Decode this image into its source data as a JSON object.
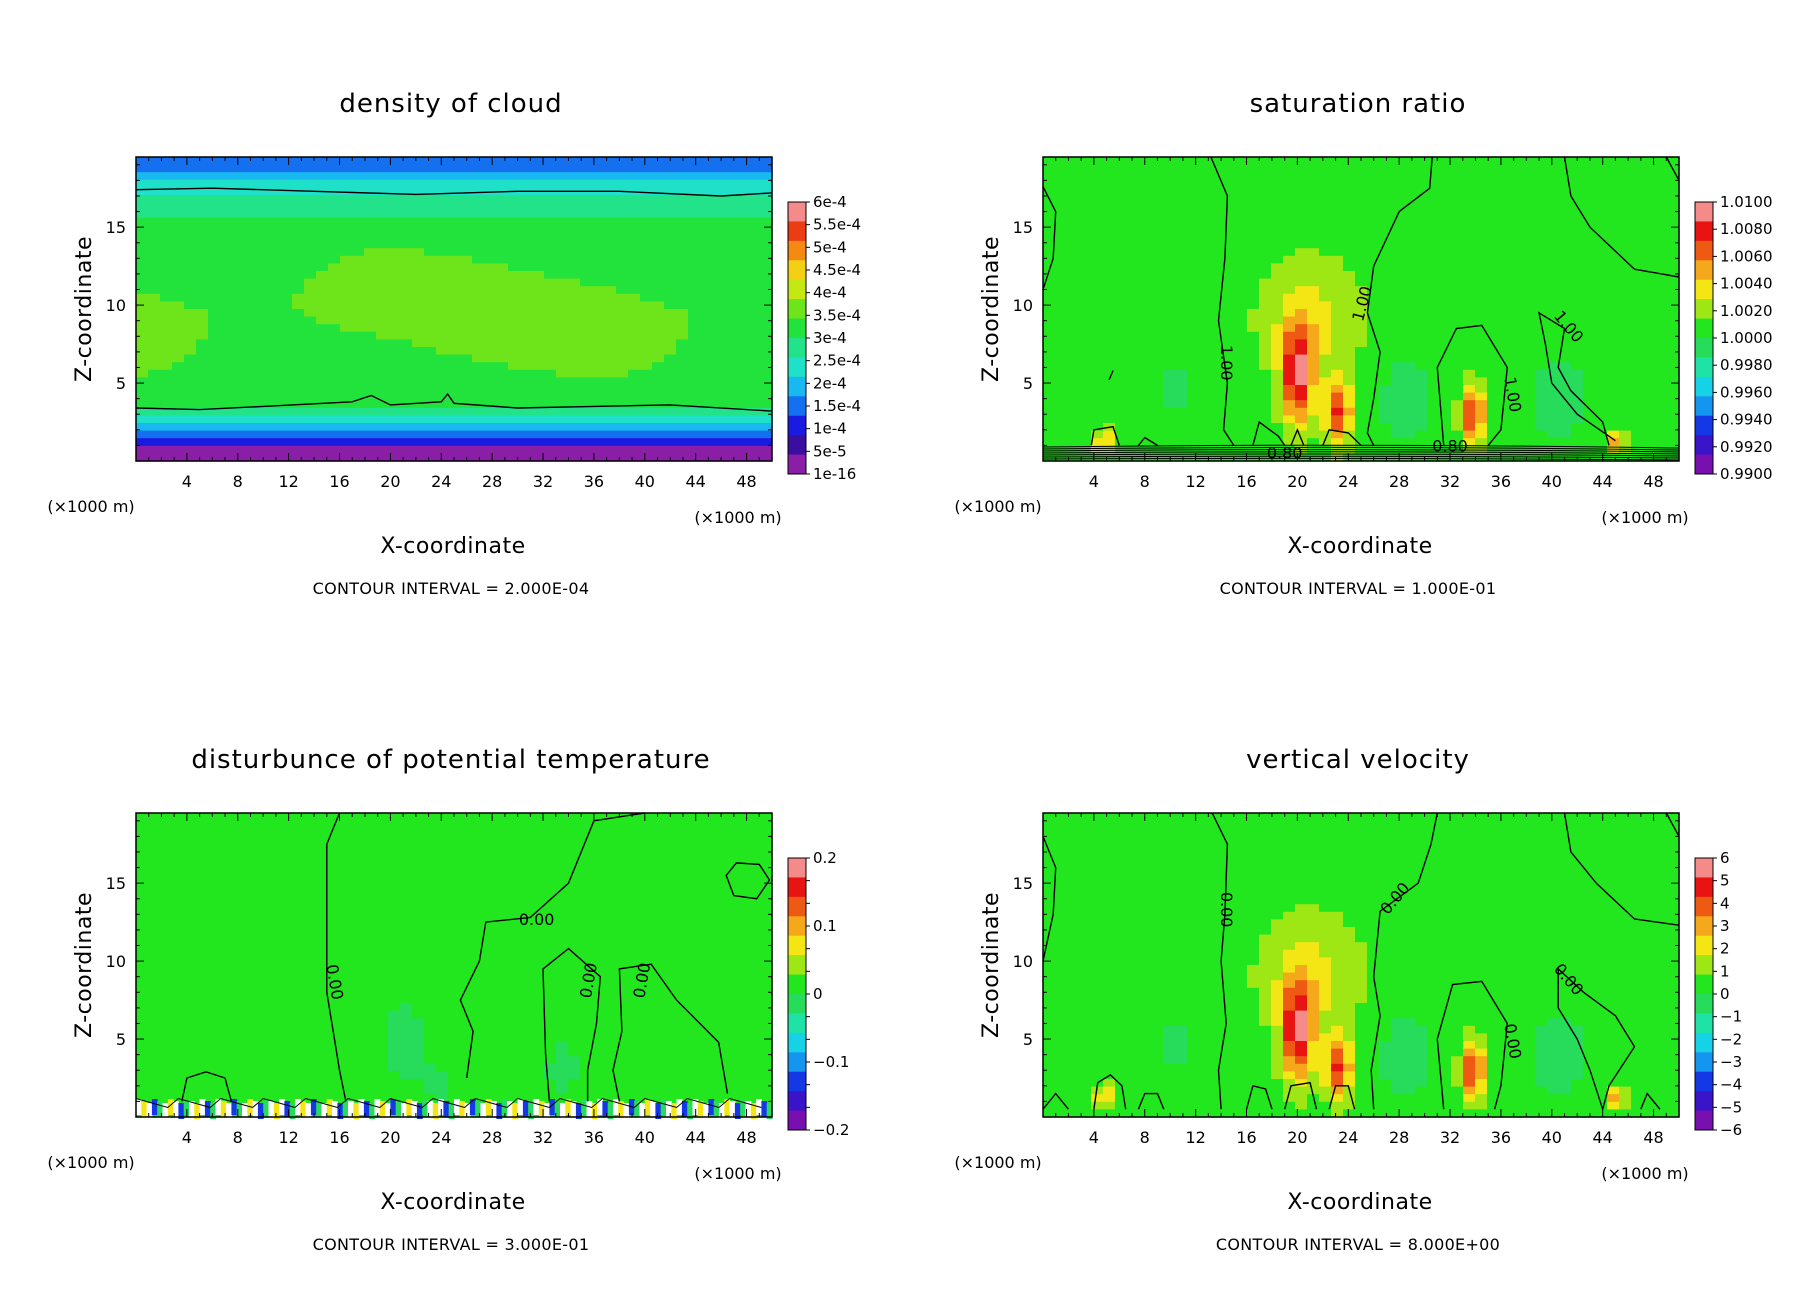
{
  "chart_data": [
    {
      "type": "heatmap",
      "title": "density of cloud",
      "xlabel": "X-coordinate",
      "ylabel": "Z-coordinate",
      "x_unit": "(×1000 m)",
      "y_unit": "(×1000 m)",
      "xlim": [
        0,
        50
      ],
      "ylim": [
        0,
        19.5
      ],
      "xticks": [
        4,
        8,
        12,
        16,
        20,
        24,
        28,
        32,
        36,
        40,
        44,
        48
      ],
      "yticks": [
        5,
        10,
        15
      ],
      "colorbar_labels": [
        "6e-4",
        "5.5e-4",
        "5e-4",
        "4.5e-4",
        "4e-4",
        "3.5e-4",
        "3e-4",
        "2.5e-4",
        "2e-4",
        "1.5e-4",
        "1e-4",
        "5e-5",
        "1e-16"
      ],
      "contour_interval": "CONTOUR INTERVAL = 2.000E-04",
      "contour_labels": [],
      "field": "density",
      "palette": "density"
    },
    {
      "type": "heatmap",
      "title": "saturation ratio",
      "xlabel": "X-coordinate",
      "ylabel": "Z-coordinate",
      "x_unit": "(×1000 m)",
      "y_unit": "(×1000 m)",
      "xlim": [
        0,
        50
      ],
      "ylim": [
        0,
        19.5
      ],
      "xticks": [
        4,
        8,
        12,
        16,
        20,
        24,
        28,
        32,
        36,
        40,
        44,
        48
      ],
      "yticks": [
        5,
        10,
        15
      ],
      "colorbar_labels": [
        "1.0100",
        "1.0080",
        "1.0060",
        "1.0040",
        "1.0020",
        "1.0000",
        "0.9980",
        "0.9960",
        "0.9940",
        "0.9920",
        "0.9900"
      ],
      "contour_interval": "CONTOUR INTERVAL = 1.000E-01",
      "contour_labels": [
        {
          "text": "1.00",
          "x": 14,
          "y": 6.3,
          "rot": 90
        },
        {
          "text": "1.00",
          "x": 25.5,
          "y": 10,
          "rot": -75
        },
        {
          "text": "1.00",
          "x": 36.5,
          "y": 4.2,
          "rot": 80
        },
        {
          "text": "1.00",
          "x": 41,
          "y": 8.4,
          "rot": 50
        },
        {
          "text": "0.80",
          "x": 19,
          "y": 0.15,
          "rot": 0
        },
        {
          "text": "0.80",
          "x": 32,
          "y": 0.6,
          "rot": 0
        }
      ],
      "field": "bumps",
      "palette": "rainbow",
      "surface_lines": true
    },
    {
      "type": "heatmap",
      "title": "disturbunce of potential temperature",
      "xlabel": "X-coordinate",
      "ylabel": "Z-coordinate",
      "x_unit": "(×1000 m)",
      "y_unit": "(×1000 m)",
      "xlim": [
        0,
        50
      ],
      "ylim": [
        0,
        19.5
      ],
      "xticks": [
        4,
        8,
        12,
        16,
        20,
        24,
        28,
        32,
        36,
        40,
        44,
        48
      ],
      "yticks": [
        5,
        10,
        15
      ],
      "colorbar_labels": [
        "0.2",
        "",
        "",
        "0.1",
        "",
        "",
        "0",
        "",
        "",
        "−0.1",
        "",
        "",
        "−0.2"
      ],
      "contour_interval": "CONTOUR INTERVAL = 3.000E-01",
      "contour_labels": [
        {
          "text": "0.00",
          "x": 31.5,
          "y": 12.3,
          "rot": 0
        },
        {
          "text": "0.00",
          "x": 15.2,
          "y": 8.6,
          "rot": 80
        },
        {
          "text": "0.00",
          "x": 36,
          "y": 8.7,
          "rot": -80
        },
        {
          "text": "0.00",
          "x": 40.2,
          "y": 8.7,
          "rot": -80
        }
      ],
      "field": "theta",
      "palette": "rainbow",
      "noise_band": true
    },
    {
      "type": "heatmap",
      "title": "vertical velocity",
      "xlabel": "X-coordinate",
      "ylabel": "Z-coordinate",
      "x_unit": "(×1000 m)",
      "y_unit": "(×1000 m)",
      "xlim": [
        0,
        50
      ],
      "ylim": [
        0,
        19.5
      ],
      "xticks": [
        4,
        8,
        12,
        16,
        20,
        24,
        28,
        32,
        36,
        40,
        44,
        48
      ],
      "yticks": [
        5,
        10,
        15
      ],
      "colorbar_labels": [
        "6",
        "5",
        "4",
        "3",
        "2",
        "1",
        "0",
        "−1",
        "−2",
        "−3",
        "−4",
        "−5",
        "−6"
      ],
      "contour_interval": "CONTOUR INTERVAL = 8.000E+00",
      "contour_labels": [
        {
          "text": "0.00",
          "x": 14,
          "y": 13.3,
          "rot": 90
        },
        {
          "text": "0.00",
          "x": 28,
          "y": 13.8,
          "rot": -50
        },
        {
          "text": "0.00",
          "x": 36.5,
          "y": 4.8,
          "rot": 80
        },
        {
          "text": "0.00",
          "x": 41,
          "y": 8.6,
          "rot": 50
        }
      ],
      "field": "bumps",
      "palette": "rainbow"
    }
  ]
}
